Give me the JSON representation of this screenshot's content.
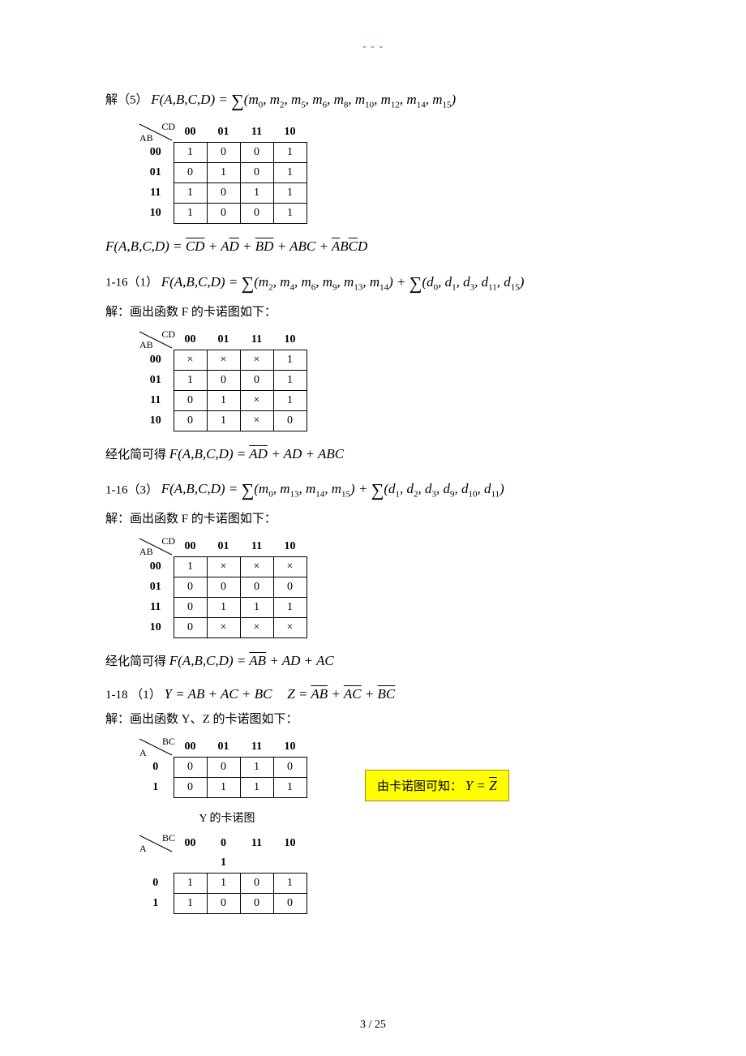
{
  "header_marks": "- - -",
  "colors": {
    "background": "#ffffff",
    "text": "#000000",
    "header": "#4169e1",
    "highlight_bg": "#ffff00",
    "highlight_border": "#aa8800"
  },
  "p1_5": {
    "prefix_cn": "解（5）",
    "formula_lhs": "F(A,B,C,D) = ",
    "minterms": [
      "m₀",
      "m₂",
      "m₅",
      "m₆",
      "m₈",
      "m₁₀",
      "m₁₂",
      "m₁₄",
      "m₁₅"
    ],
    "kmap": {
      "row_var": "AB",
      "col_var": "CD",
      "cols": [
        "00",
        "01",
        "11",
        "10"
      ],
      "rows": [
        "00",
        "01",
        "11",
        "10"
      ],
      "cells": [
        [
          "1",
          "0",
          "0",
          "1"
        ],
        [
          "0",
          "1",
          "0",
          "1"
        ],
        [
          "1",
          "0",
          "1",
          "1"
        ],
        [
          "1",
          "0",
          "0",
          "1"
        ]
      ]
    },
    "result": {
      "lhs": "F(A,B,C,D) = ",
      "terms": [
        "C̅D̅",
        "AD̅",
        "B̅D̅",
        "ABC",
        "A̅BC̅D"
      ]
    }
  },
  "p1_16_1": {
    "label": "1-16（1）",
    "formula_lhs": "F(A,B,C,D) = ",
    "minterms": [
      "m₂",
      "m₄",
      "m₆",
      "m₉",
      "m₁₃",
      "m₁₄"
    ],
    "dontcares": [
      "d₀",
      "d₁",
      "d₃",
      "d₁₁",
      "d₁₅"
    ],
    "intro_cn": "解：画出函数 F 的卡诺图如下：",
    "kmap": {
      "row_var": "AB",
      "col_var": "CD",
      "cols": [
        "00",
        "01",
        "11",
        "10"
      ],
      "rows": [
        "00",
        "01",
        "11",
        "10"
      ],
      "cells": [
        [
          "×",
          "×",
          "×",
          "1"
        ],
        [
          "1",
          "0",
          "0",
          "1"
        ],
        [
          "0",
          "1",
          "×",
          "1"
        ],
        [
          "0",
          "1",
          "×",
          "0"
        ]
      ]
    },
    "result_prefix_cn": "经化简可得",
    "result": {
      "lhs": "F(A,B,C,D) = ",
      "terms": [
        "A̅D̅",
        "AD",
        "ABC"
      ]
    }
  },
  "p1_16_3": {
    "label": "1-16（3）",
    "formula_lhs": "F(A,B,C,D) = ",
    "minterms": [
      "m₀",
      "m₁₃",
      "m₁₄",
      "m₁₅"
    ],
    "dontcares": [
      "d₁",
      "d₂",
      "d₃",
      "d₉",
      "d₁₀",
      "d₁₁"
    ],
    "intro_cn": "解：画出函数 F 的卡诺图如下：",
    "kmap": {
      "row_var": "AB",
      "col_var": "CD",
      "cols": [
        "00",
        "01",
        "11",
        "10"
      ],
      "rows": [
        "00",
        "01",
        "11",
        "10"
      ],
      "cells": [
        [
          "1",
          "×",
          "×",
          "×"
        ],
        [
          "0",
          "0",
          "0",
          "0"
        ],
        [
          "0",
          "1",
          "1",
          "1"
        ],
        [
          "0",
          "×",
          "×",
          "×"
        ]
      ]
    },
    "result_prefix_cn": "经化简可得",
    "result": {
      "lhs": "F(A,B,C,D) = ",
      "terms": [
        "A̅B̅",
        "AD",
        "AC"
      ]
    }
  },
  "p1_18": {
    "label": "1-18 （1）",
    "Y_formula": "Y = AB + AC + BC",
    "Z_formula_terms": [
      "A̅B̅",
      "A̅C̅",
      "B̅C̅"
    ],
    "Z_lhs": "Z = ",
    "intro_cn": "解：画出函数 Y、Z 的卡诺图如下：",
    "kmapY": {
      "row_var": "A",
      "col_var": "BC",
      "cols": [
        "00",
        "01",
        "11",
        "10"
      ],
      "rows": [
        "0",
        "1"
      ],
      "cells": [
        [
          "0",
          "0",
          "1",
          "0"
        ],
        [
          "0",
          "1",
          "1",
          "1"
        ]
      ],
      "caption": "Y 的卡诺图"
    },
    "kmapZ": {
      "row_var": "A",
      "col_var": "BC",
      "cols": [
        "00",
        "01",
        "11",
        "10"
      ],
      "col_display": [
        "00",
        "0",
        "11",
        "10"
      ],
      "col_extra_top": "1",
      "rows": [
        "0",
        "1"
      ],
      "cells": [
        [
          "1",
          "1",
          "0",
          "1"
        ],
        [
          "1",
          "0",
          "0",
          "0"
        ]
      ]
    },
    "highlight_cn": "由卡诺图可知：",
    "highlight_formula": "Y = Z̅"
  },
  "footer": "3  / 25"
}
